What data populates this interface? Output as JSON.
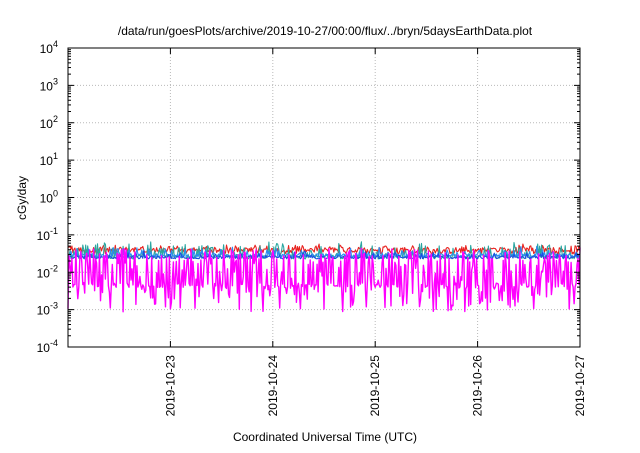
{
  "chart_data": {
    "type": "line",
    "title": "/data/run/goesPlots/archive/2019-10-27/00:00/flux/../bryn/5daysEarthData.plot",
    "xlabel": "Coordinated Universal Time (UTC)",
    "ylabel": "cGy/day",
    "yscale": "log",
    "ylim": [
      0.0001,
      10000
    ],
    "y_ticks": [
      {
        "base": "10",
        "exp": "4"
      },
      {
        "base": "10",
        "exp": "3"
      },
      {
        "base": "10",
        "exp": "2"
      },
      {
        "base": "10",
        "exp": "1"
      },
      {
        "base": "10",
        "exp": "0"
      },
      {
        "base": "10",
        "exp": "-1"
      },
      {
        "base": "10",
        "exp": "-2"
      },
      {
        "base": "10",
        "exp": "-3"
      },
      {
        "base": "10",
        "exp": "-4"
      }
    ],
    "xlim": [
      "2019-10-22T00:00",
      "2019-10-27T00:00"
    ],
    "x_ticks": [
      "2019-10-23",
      "2019-10-24",
      "2019-10-25",
      "2019-10-26",
      "2019-10-27"
    ],
    "grid": true,
    "legend": "none",
    "series": [
      {
        "color": "#e8221f",
        "base": 0.038,
        "jitter": 0.18,
        "spikes": 0.35,
        "spikeDepth": 0.1
      },
      {
        "color": "#2aa6a0",
        "base": 0.026,
        "jitter": 0.12,
        "spikes": 0.3,
        "spikeDepth": 0.35
      },
      {
        "color": "#2b8cf0",
        "base": 0.028,
        "jitter": 0.1,
        "spikes": 0.2,
        "spikeDepth": 0.2
      },
      {
        "color": "#1a4fe0",
        "base": 0.025,
        "jitter": 0.08,
        "spikes": 0.15,
        "spikeDepth": 0.15
      },
      {
        "color": "#ff00ff",
        "base": 0.0045,
        "jitter": 0.12,
        "spikes": 0.45,
        "spikeDepth": -0.7
      }
    ]
  }
}
